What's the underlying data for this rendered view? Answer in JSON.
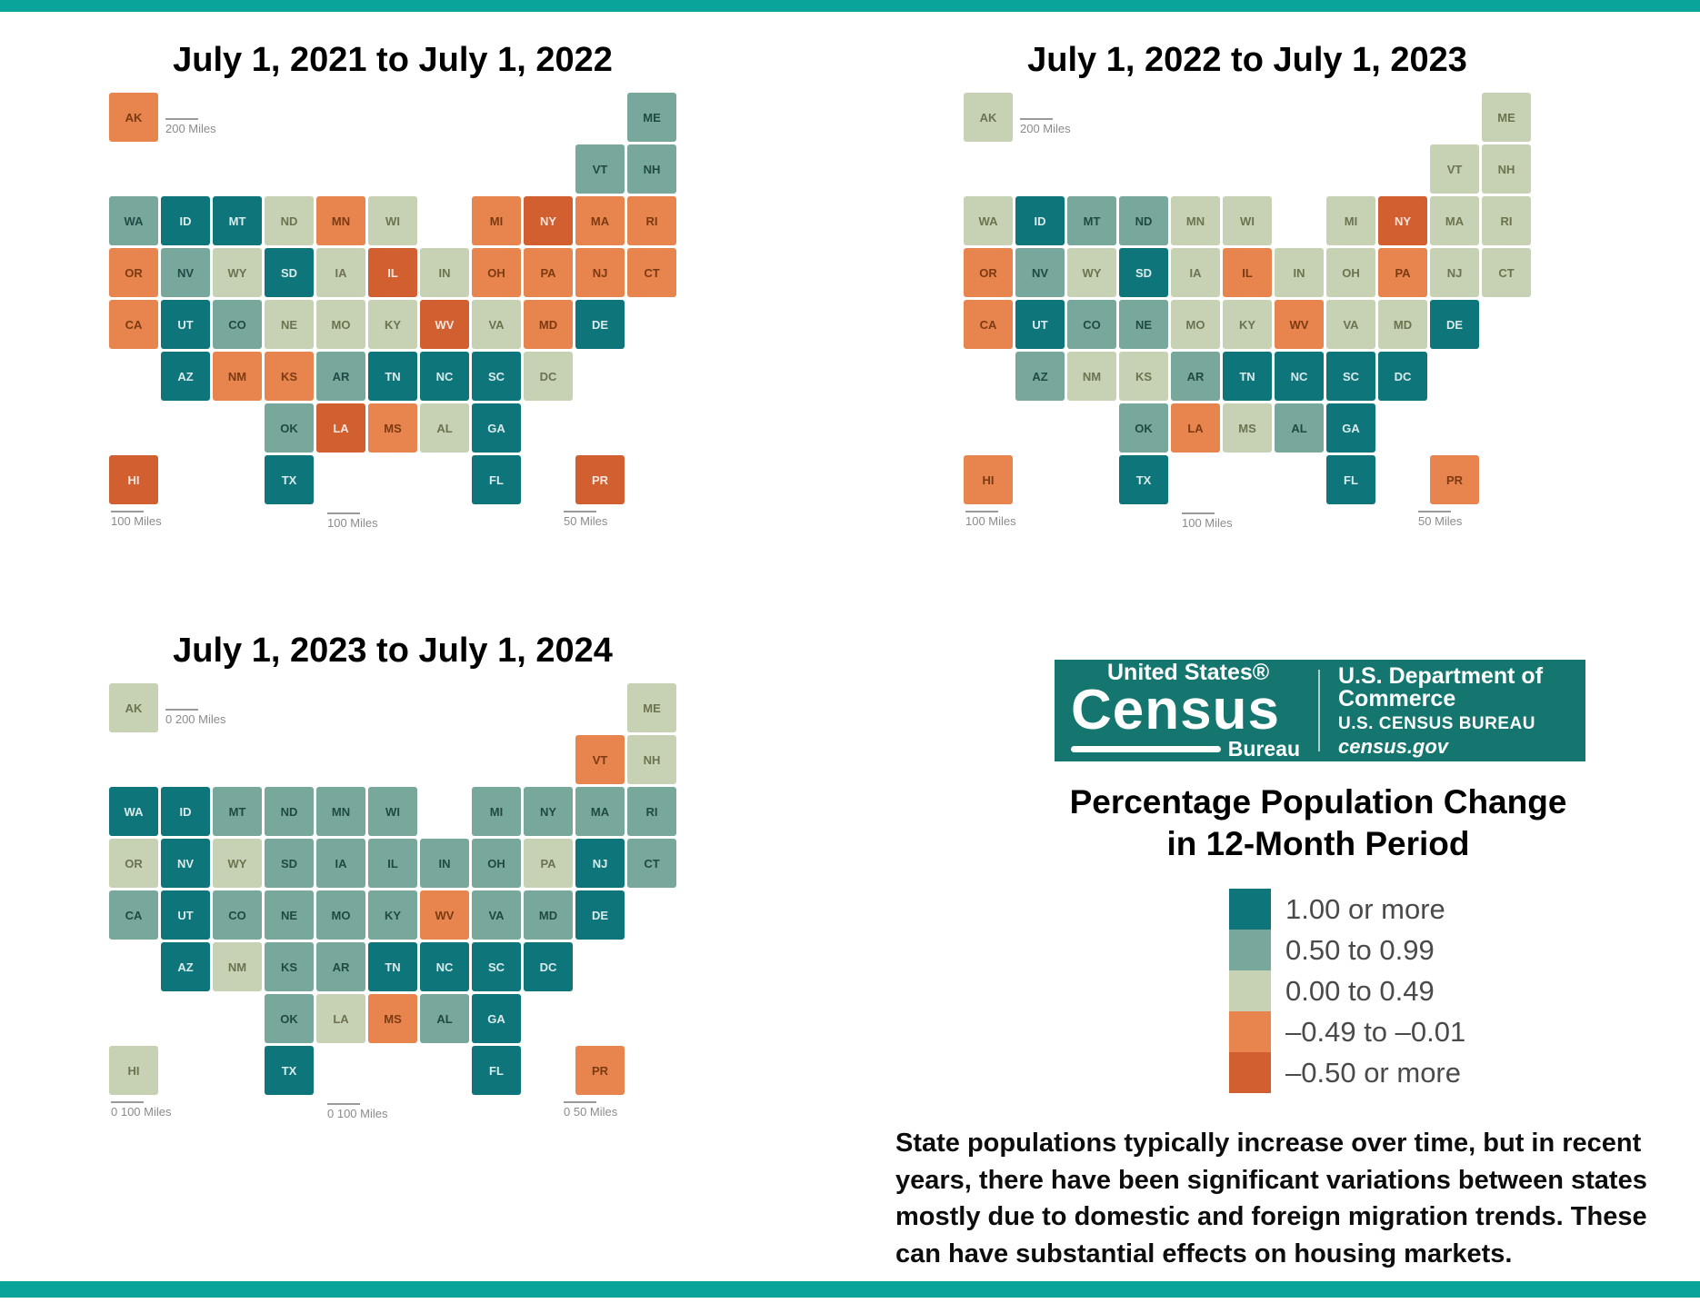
{
  "page": {
    "background": "#ffffff",
    "border_bar_color": "#0ba49b"
  },
  "legend": {
    "title_line1": "Percentage Population Change",
    "title_line2": "in 12-Month Period",
    "items": [
      {
        "key": "cat5",
        "label": "1.00 or more",
        "color": "#0e767b"
      },
      {
        "key": "cat4",
        "label": "0.50 to 0.99",
        "color": "#78a79b"
      },
      {
        "key": "cat3",
        "label": "0.00 to 0.49",
        "color": "#c7d1b4"
      },
      {
        "key": "cat2",
        "label": "–0.49 to –0.01",
        "color": "#e8854f"
      },
      {
        "key": "cat1",
        "label": "–0.50 or more",
        "color": "#d15f30"
      }
    ]
  },
  "logo": {
    "united_states": "United States®",
    "census": "Census",
    "bureau": "Bureau",
    "line1": "U.S. Department of Commerce",
    "line2": "U.S. CENSUS BUREAU",
    "line3": "census.gov",
    "background": "#15756f"
  },
  "note": {
    "lines": [
      "State populations typically increase over time, but in recent",
      "years, there have been significant variations between states",
      "mostly due to domestic and foreign migration trends. These",
      "can have substantial effects on housing markets."
    ]
  },
  "maps": [
    {
      "id": "m1",
      "title": "July 1, 2021 to July 1, 2022",
      "scales": {
        "ak": "200 Miles",
        "hi": "100 Miles",
        "gulf": "100 Miles",
        "pr": "50 Miles"
      },
      "states": {
        "AK": "cat2",
        "AL": "cat3",
        "AR": "cat4",
        "AZ": "cat5",
        "CA": "cat2",
        "CO": "cat4",
        "CT": "cat2",
        "DC": "cat3",
        "DE": "cat5",
        "FL": "cat5",
        "GA": "cat5",
        "HI": "cat1",
        "IA": "cat3",
        "ID": "cat5",
        "IL": "cat1",
        "IN": "cat3",
        "KS": "cat2",
        "KY": "cat3",
        "LA": "cat1",
        "MA": "cat2",
        "MD": "cat2",
        "ME": "cat4",
        "MI": "cat2",
        "MN": "cat2",
        "MO": "cat3",
        "MS": "cat2",
        "MT": "cat5",
        "NC": "cat5",
        "ND": "cat3",
        "NE": "cat3",
        "NH": "cat4",
        "NJ": "cat2",
        "NM": "cat2",
        "NV": "cat4",
        "NY": "cat1",
        "OH": "cat2",
        "OK": "cat4",
        "OR": "cat2",
        "PA": "cat2",
        "PR": "cat1",
        "RI": "cat2",
        "SC": "cat5",
        "SD": "cat5",
        "TN": "cat5",
        "TX": "cat5",
        "UT": "cat5",
        "VA": "cat3",
        "VT": "cat4",
        "WA": "cat4",
        "WI": "cat3",
        "WV": "cat1",
        "WY": "cat3"
      }
    },
    {
      "id": "m2",
      "title": "July 1, 2022 to July 1, 2023",
      "scales": {
        "ak": "200 Miles",
        "hi": "100 Miles",
        "gulf": "100 Miles",
        "pr": "50 Miles"
      },
      "states": {
        "AK": "cat3",
        "AL": "cat4",
        "AR": "cat4",
        "AZ": "cat4",
        "CA": "cat2",
        "CO": "cat4",
        "CT": "cat3",
        "DC": "cat5",
        "DE": "cat5",
        "FL": "cat5",
        "GA": "cat5",
        "HI": "cat2",
        "IA": "cat3",
        "ID": "cat5",
        "IL": "cat2",
        "IN": "cat3",
        "KS": "cat3",
        "KY": "cat3",
        "LA": "cat2",
        "MA": "cat3",
        "MD": "cat3",
        "ME": "cat3",
        "MI": "cat3",
        "MN": "cat3",
        "MO": "cat3",
        "MS": "cat3",
        "MT": "cat4",
        "NC": "cat5",
        "ND": "cat4",
        "NE": "cat4",
        "NH": "cat3",
        "NJ": "cat3",
        "NM": "cat3",
        "NV": "cat4",
        "NY": "cat1",
        "OH": "cat3",
        "OK": "cat4",
        "OR": "cat2",
        "PA": "cat2",
        "PR": "cat2",
        "RI": "cat3",
        "SC": "cat5",
        "SD": "cat5",
        "TN": "cat5",
        "TX": "cat5",
        "UT": "cat5",
        "VA": "cat3",
        "VT": "cat3",
        "WA": "cat3",
        "WI": "cat3",
        "WV": "cat2",
        "WY": "cat3"
      }
    },
    {
      "id": "m3",
      "title": "July 1, 2023 to July 1, 2024",
      "scales": {
        "ak": "0  200 Miles",
        "hi": "0  100 Miles",
        "gulf": "0  100 Miles",
        "pr": "0  50 Miles"
      },
      "states": {
        "AK": "cat3",
        "AL": "cat4",
        "AR": "cat4",
        "AZ": "cat5",
        "CA": "cat4",
        "CO": "cat4",
        "CT": "cat4",
        "DC": "cat5",
        "DE": "cat5",
        "FL": "cat5",
        "GA": "cat5",
        "HI": "cat3",
        "IA": "cat4",
        "ID": "cat5",
        "IL": "cat4",
        "IN": "cat4",
        "KS": "cat4",
        "KY": "cat4",
        "LA": "cat3",
        "MA": "cat4",
        "MD": "cat4",
        "ME": "cat3",
        "MI": "cat4",
        "MN": "cat4",
        "MO": "cat4",
        "MS": "cat2",
        "MT": "cat4",
        "NC": "cat5",
        "ND": "cat4",
        "NE": "cat4",
        "NH": "cat3",
        "NJ": "cat5",
        "NM": "cat3",
        "NV": "cat5",
        "NY": "cat4",
        "OH": "cat4",
        "OK": "cat4",
        "OR": "cat3",
        "PA": "cat3",
        "PR": "cat2",
        "RI": "cat4",
        "SC": "cat5",
        "SD": "cat4",
        "TN": "cat5",
        "TX": "cat5",
        "UT": "cat5",
        "VA": "cat4",
        "VT": "cat2",
        "WA": "cat5",
        "WI": "cat4",
        "WV": "cat2",
        "WY": "cat3"
      }
    }
  ]
}
